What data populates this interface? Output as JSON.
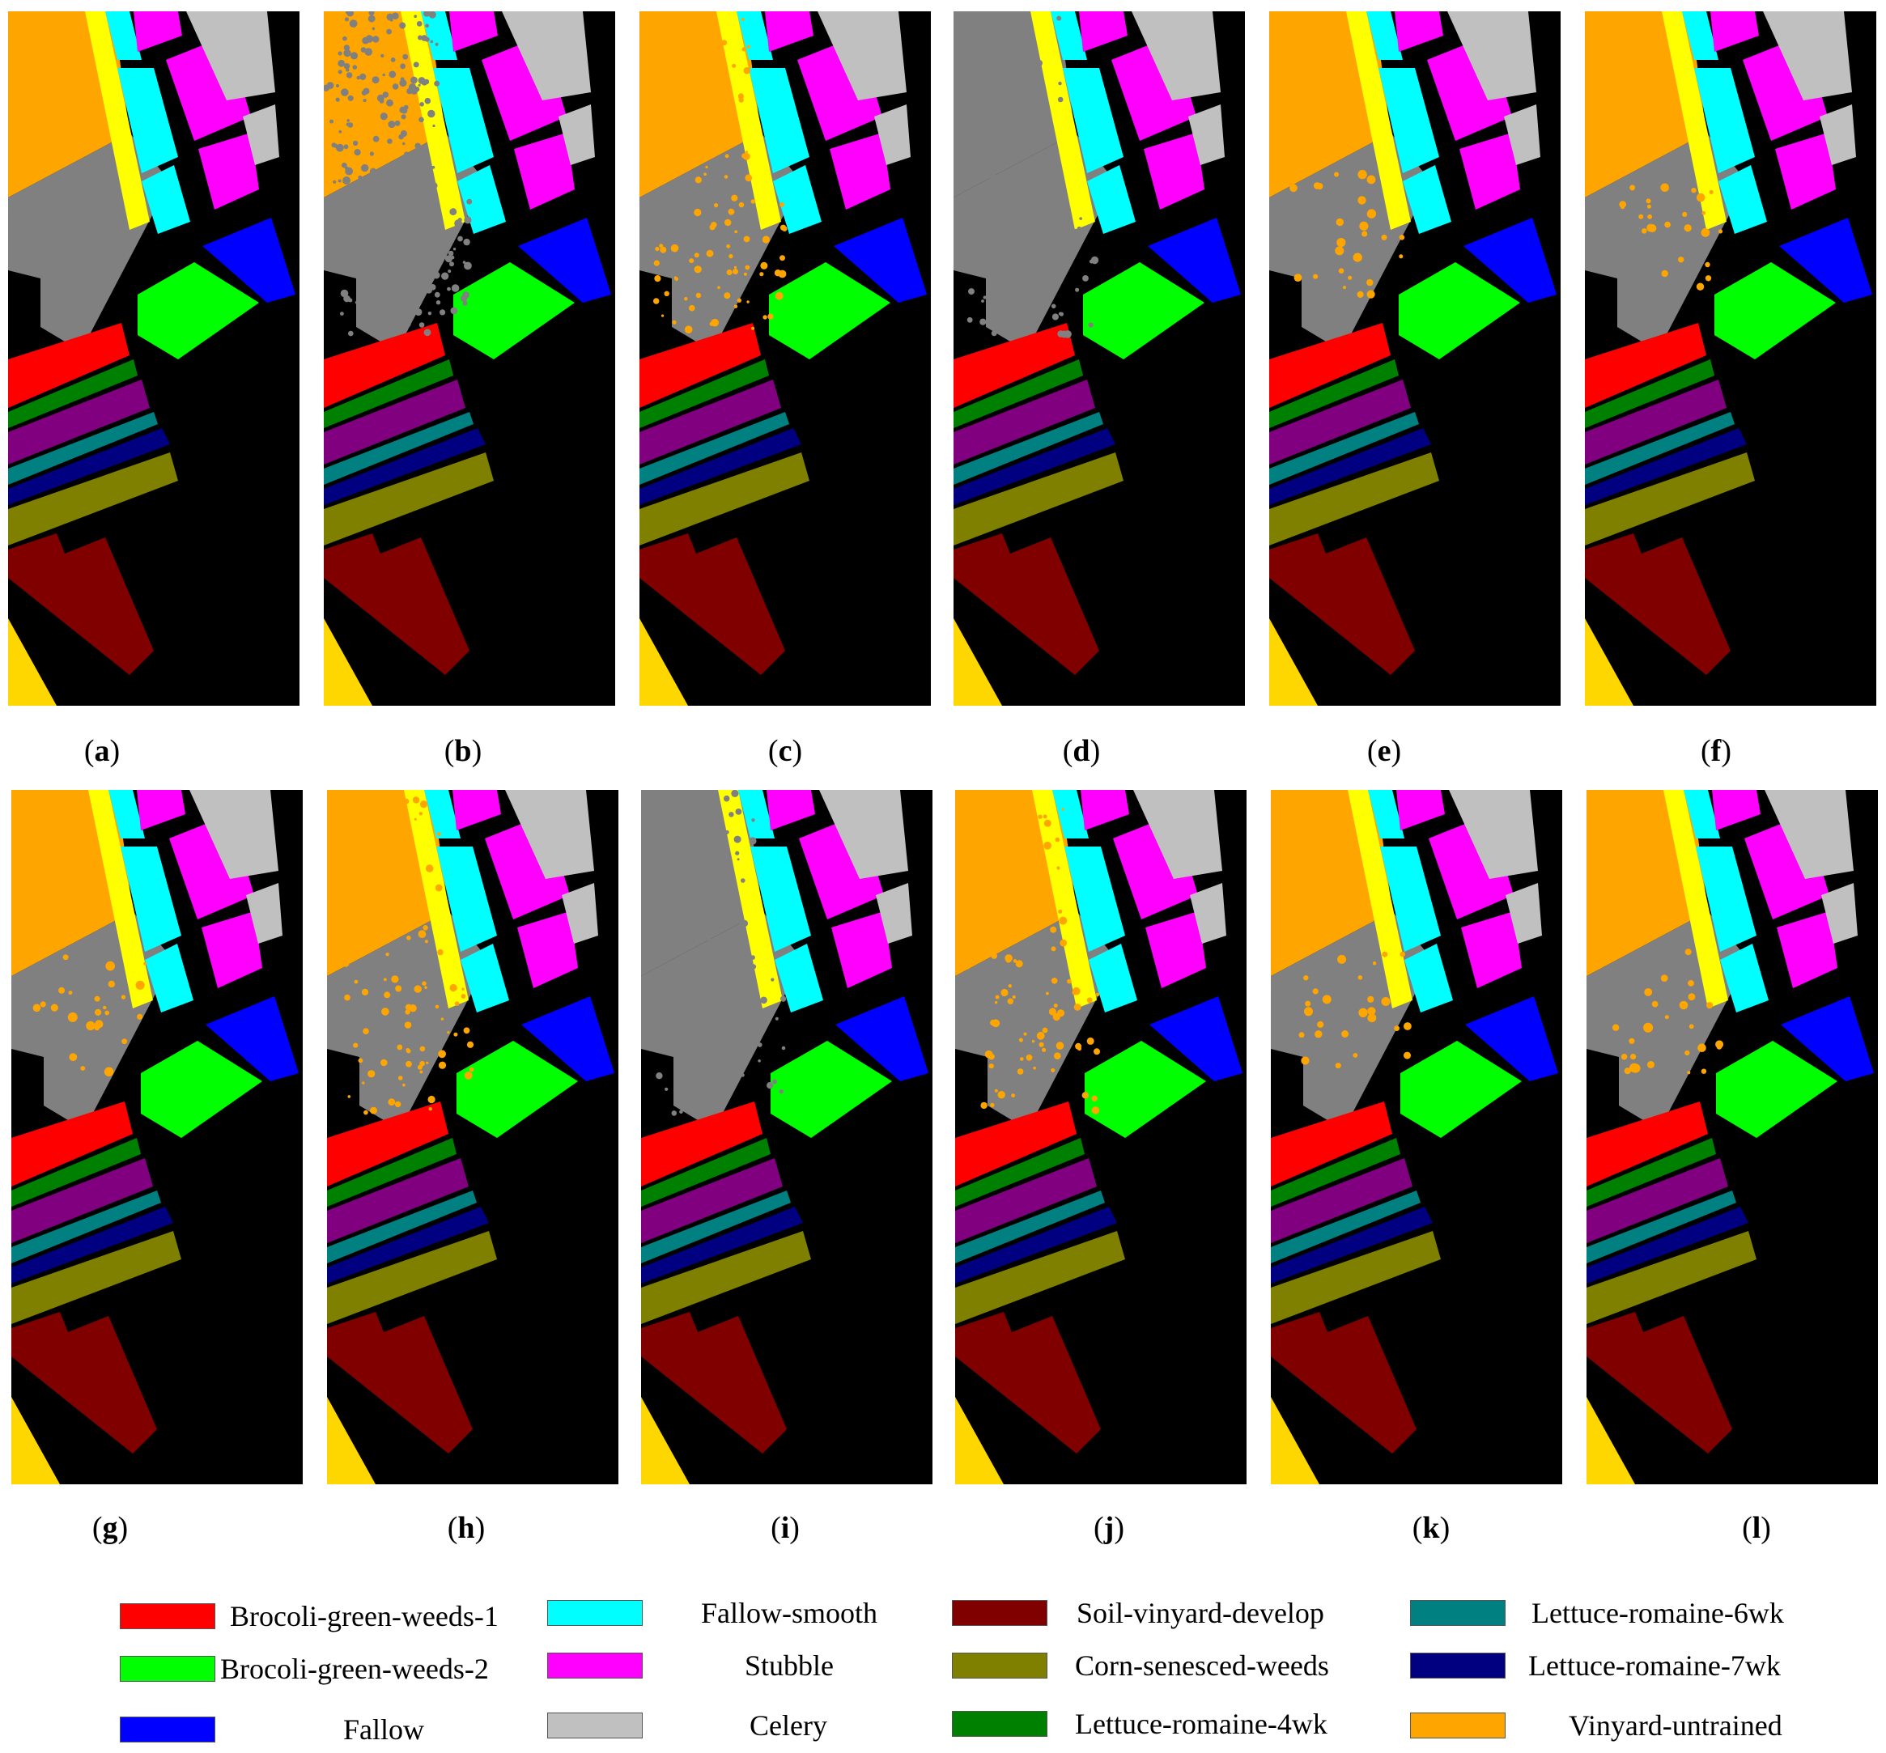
{
  "figure": {
    "panels": [
      {
        "label": "a",
        "variant": "ground-truth"
      },
      {
        "label": "b",
        "variant": "noisy"
      },
      {
        "label": "c",
        "variant": "speckled"
      },
      {
        "label": "d",
        "variant": "gray-dominant"
      },
      {
        "label": "e",
        "variant": "clean"
      },
      {
        "label": "f",
        "variant": "clean"
      },
      {
        "label": "g",
        "variant": "clean"
      },
      {
        "label": "h",
        "variant": "speckled"
      },
      {
        "label": "i",
        "variant": "gray-dominant"
      },
      {
        "label": "j",
        "variant": "speckled"
      },
      {
        "label": "k",
        "variant": "clean"
      },
      {
        "label": "l",
        "variant": "clean"
      }
    ],
    "legend": [
      {
        "label": "Brocoli-green-weeds-1",
        "color": "#ff0000"
      },
      {
        "label": "Fallow-smooth",
        "color": "#00ffff"
      },
      {
        "label": "Soil-vinyard-develop",
        "color": "#800000"
      },
      {
        "label": "Lettuce-romaine-6wk",
        "color": "#008080"
      },
      {
        "label": "Brocoli-green-weeds-2",
        "color": "#00ff00"
      },
      {
        "label": "Stubble",
        "color": "#ff00ff"
      },
      {
        "label": "Corn-senesced-weeds",
        "color": "#808000"
      },
      {
        "label": "Lettuce-romaine-7wk",
        "color": "#000080"
      },
      {
        "label": "Fallow",
        "color": "#0000ff"
      },
      {
        "label": "Celery",
        "color": "#c0c0c0"
      },
      {
        "label": "Lettuce-romaine-4wk",
        "color": "#008000"
      },
      {
        "label": "Vinyard-untrained",
        "color": "#ffa500"
      }
    ],
    "extra_colors": {
      "background": "#000000",
      "grapes_untrained": "#808080",
      "yellow_strip": "#ffff00",
      "bottom_field": "#ffd700",
      "purple_strip": "#800080"
    }
  }
}
